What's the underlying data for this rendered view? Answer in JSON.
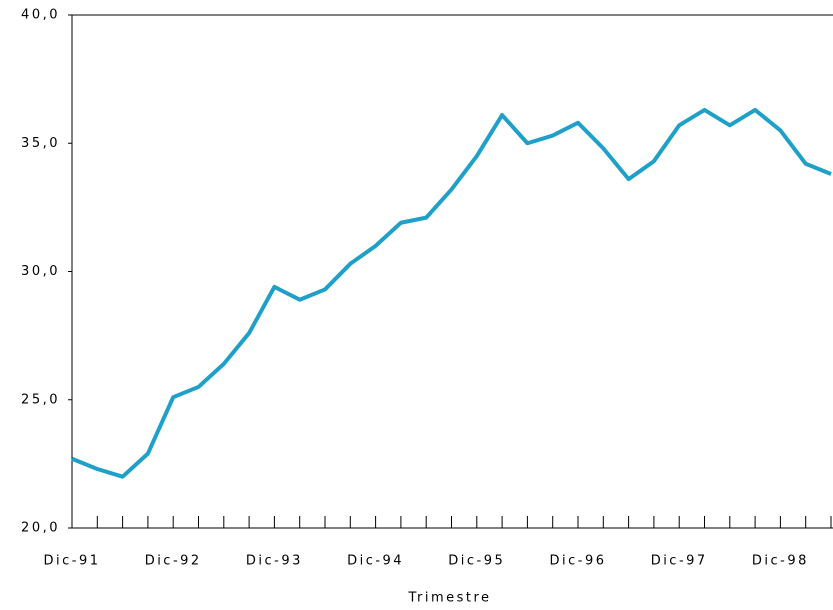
{
  "chart_data": {
    "type": "line",
    "x_label": "Trimestre",
    "categories": [
      "Dic-91",
      null,
      null,
      null,
      "Dic-92",
      null,
      null,
      null,
      "Dic-93",
      null,
      null,
      null,
      "Dic-94",
      null,
      null,
      null,
      "Dic-95",
      null,
      null,
      null,
      "Dic-96",
      null,
      null,
      null,
      "Dic-97",
      null,
      null,
      null,
      "Dic-98",
      null,
      null
    ],
    "values": [
      22.7,
      22.3,
      22.0,
      22.9,
      25.1,
      25.5,
      26.4,
      27.6,
      29.4,
      28.9,
      29.3,
      30.3,
      31.0,
      31.9,
      32.1,
      33.2,
      34.5,
      36.1,
      35.0,
      35.3,
      35.8,
      34.8,
      33.6,
      34.3,
      35.7,
      36.3,
      35.7,
      36.3,
      35.5,
      34.2,
      33.8
    ],
    "color": "#1ea0c8",
    "ylim": [
      20,
      40
    ],
    "yticks": [
      {
        "value": 20,
        "label": "20,0"
      },
      {
        "value": 25,
        "label": "25,0"
      },
      {
        "value": 30,
        "label": "30,0"
      },
      {
        "value": 35,
        "label": "35,0"
      },
      {
        "value": 40,
        "label": "40,0"
      }
    ],
    "grid": false
  }
}
